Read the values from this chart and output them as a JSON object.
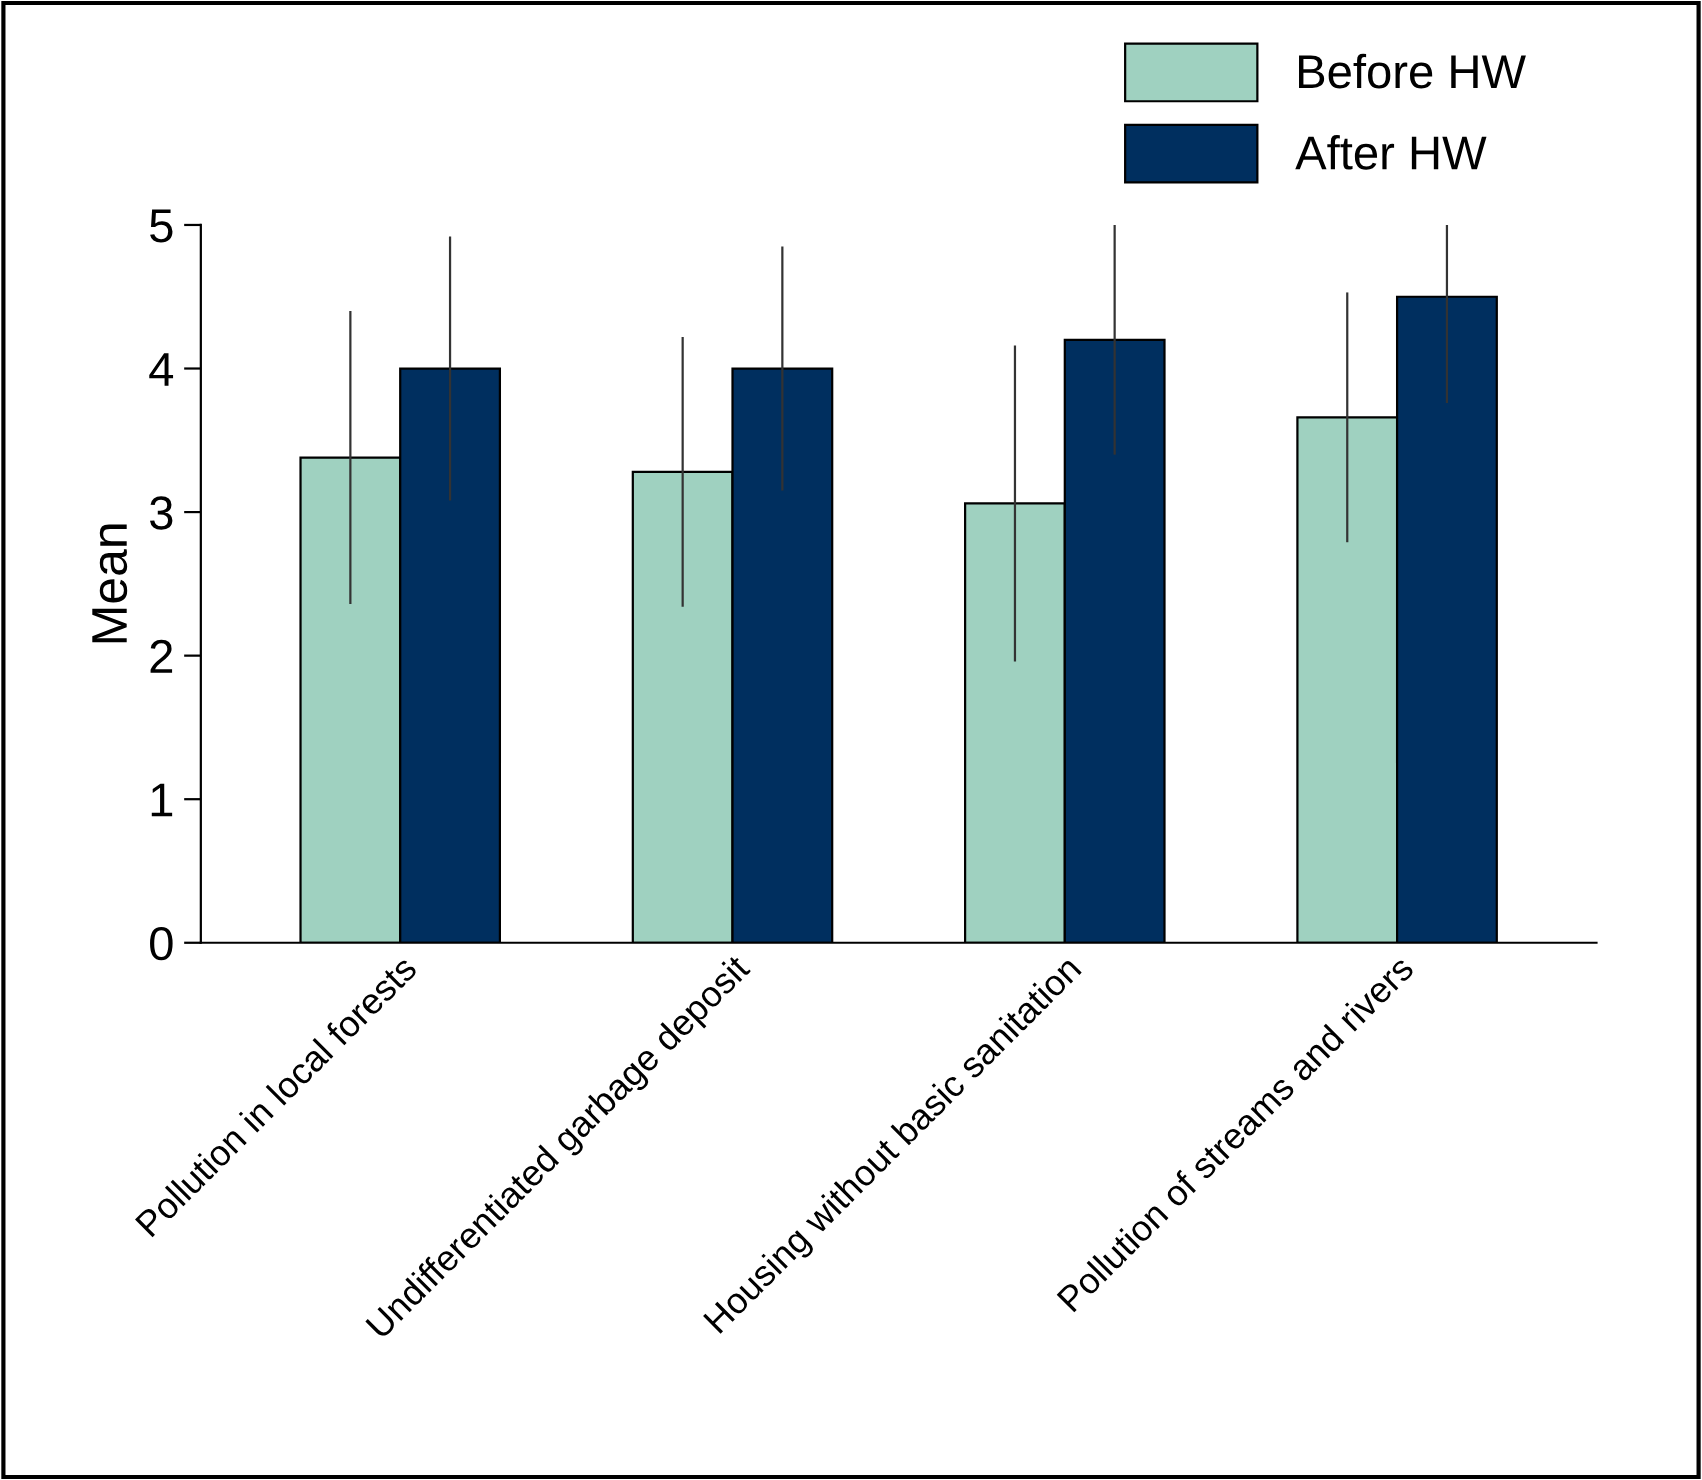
{
  "chart_data": {
    "type": "bar",
    "ylabel": "Mean",
    "categories": [
      "Pollution in local forests",
      "Undifferentiated garbage deposit",
      "Housing without basic sanitation",
      "Pollution of streams and rivers"
    ],
    "series": [
      {
        "name": "Before HW",
        "color": "#9fd1c0",
        "values": [
          3.38,
          3.28,
          3.06,
          3.66
        ],
        "errors": [
          1.02,
          0.94,
          1.1,
          0.87
        ]
      },
      {
        "name": "After HW",
        "color": "#002f5f",
        "values": [
          4.0,
          4.0,
          4.2,
          4.5
        ],
        "errors": [
          0.92,
          0.85,
          0.8,
          [
            3.76,
            5.0
          ]
        ]
      }
    ],
    "ylim": [
      0,
      5
    ],
    "yticks": [
      0,
      1,
      2,
      3,
      4,
      5
    ],
    "grid": false,
    "legend": "top right"
  }
}
